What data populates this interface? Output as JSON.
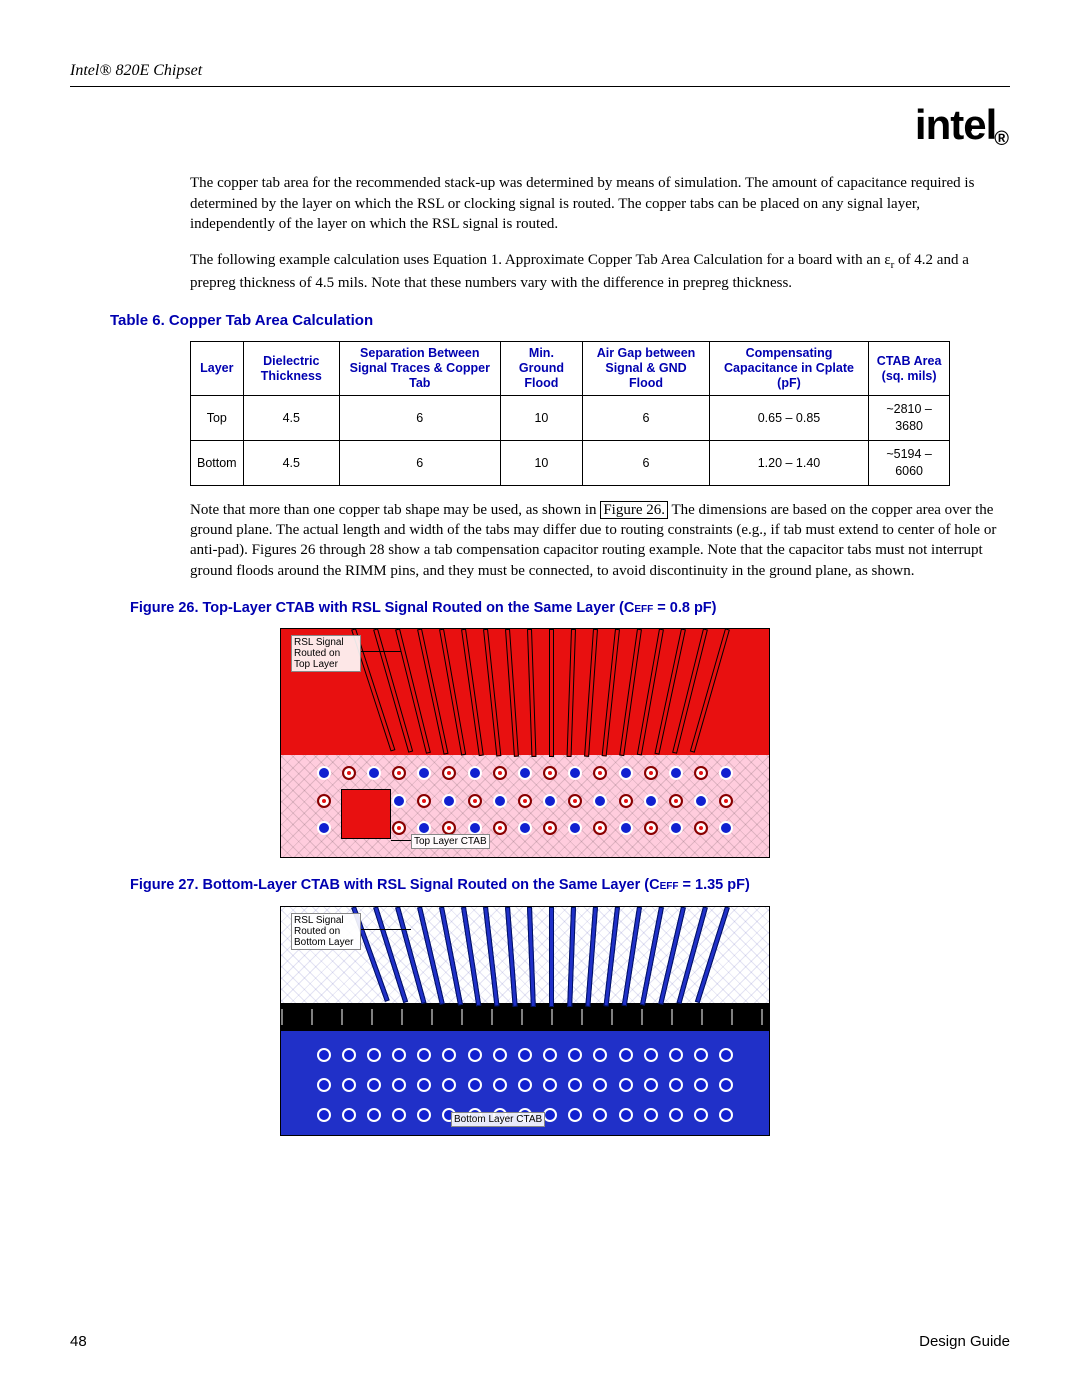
{
  "header": {
    "doc_title": "Intel® 820E Chipset",
    "logo_text": "intel"
  },
  "paragraphs": {
    "p1": "The copper tab area for the recommended stack-up was determined by means of simulation. The amount of capacitance required is determined by the layer on which the RSL or clocking signal is routed. The copper tabs can be placed on any signal layer, independently of the layer on which the RSL signal is routed.",
    "p2a": "The following example calculation uses Equation 1. Approximate Copper Tab Area Calculation for a board with an ε",
    "p2sub": "r",
    "p2b": " of 4.2 and a prepreg thickness of 4.5 mils. Note that these numbers vary with the difference in prepreg thickness.",
    "p3a": "Note that more than one copper tab shape may be used, as shown in ",
    "p3link": "Figure 26.",
    "p3b": " The dimensions are based on the copper area over the ground plane. The actual length and width of the tabs may differ due to routing constraints (e.g., if tab must extend to center of hole or anti-pad). Figures 26 through 28 show a tab compensation capacitor routing example. Note that the capacitor tabs must not interrupt ground floods around the RIMM pins, and they must be connected, to avoid discontinuity in the ground plane, as shown."
  },
  "table": {
    "caption": "Table 6. Copper Tab Area Calculation",
    "headers": {
      "c1": "Layer",
      "c2": "Dielectric Thickness",
      "c3": "Separation Between Signal Traces & Copper Tab",
      "c4": "Min. Ground Flood",
      "c5": "Air Gap between Signal & GND Flood",
      "c6": "Compensating Capacitance in Cplate (pF)",
      "c7": "CTAB Area (sq. mils)"
    },
    "rows": [
      {
        "layer": "Top",
        "dt": "4.5",
        "sep": "6",
        "mgf": "10",
        "gap": "6",
        "cap": "0.65 – 0.85",
        "area": "~2810 – 3680"
      },
      {
        "layer": "Bottom",
        "dt": "4.5",
        "sep": "6",
        "mgf": "10",
        "gap": "6",
        "cap": "1.20 – 1.40",
        "area": "~5194 – 6060"
      }
    ]
  },
  "figures": {
    "f26": {
      "caption_a": "Figure 26. Top-Layer CTAB with RSL Signal Routed on the Same Layer (C",
      "caption_sub": "EFF",
      "caption_b": " = 0.8 pF)",
      "anno1": "RSL Signal Routed on Top Layer",
      "anno2": "Top Layer CTAB",
      "colors": {
        "trace": "#e81010",
        "via_red": "#e81010",
        "via_blue": "#1020d0",
        "bg_hatch": "#ffccdd"
      }
    },
    "f27": {
      "caption_a": "Figure 27. Bottom-Layer CTAB with RSL Signal Routed on the Same Layer (C",
      "caption_sub": "EFF",
      "caption_b": " = 1.35 pF)",
      "anno1": "RSL Signal Routed on Bottom Layer",
      "anno2": "Bottom Layer CTAB",
      "colors": {
        "trace": "#2030c8",
        "via_blue": "#1020d0",
        "band": "#000000",
        "bg": "#ffffff"
      }
    }
  },
  "footer": {
    "page": "48",
    "guide": "Design Guide"
  }
}
